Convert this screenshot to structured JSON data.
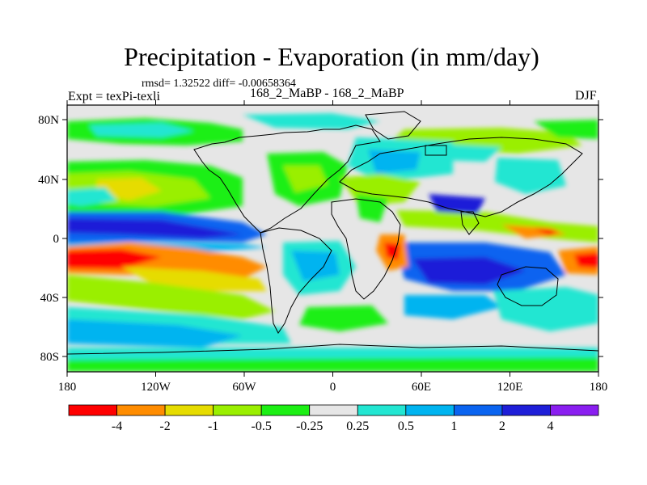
{
  "title": "Precipitation - Evaporation (in mm/day)",
  "stats_line": "rmsd= 1.32522 diff= -0.00658364",
  "experiment_label": "Expt = texPi-texli",
  "period_label": "168_2_MaBP - 168_2_MaBP",
  "season_label": "DJF",
  "map": {
    "lon_ticks": [
      "180",
      "120W",
      "60W",
      "0",
      "60E",
      "120E",
      "180"
    ],
    "lat_ticks": [
      "80N",
      "40N",
      "0",
      "40S",
      "80S"
    ]
  },
  "colorbar": {
    "colors": [
      "#ff0000",
      "#ff8c00",
      "#e6dc00",
      "#9aef00",
      "#1cef14",
      "#e6e6e6",
      "#22e6d2",
      "#00b4f0",
      "#0a64f0",
      "#1e1ed8",
      "#8a1ef0"
    ],
    "labels": [
      "-4",
      "-2",
      "-1",
      "-0.5",
      "-0.25",
      "0.25",
      "0.5",
      "1",
      "2",
      "4"
    ]
  }
}
